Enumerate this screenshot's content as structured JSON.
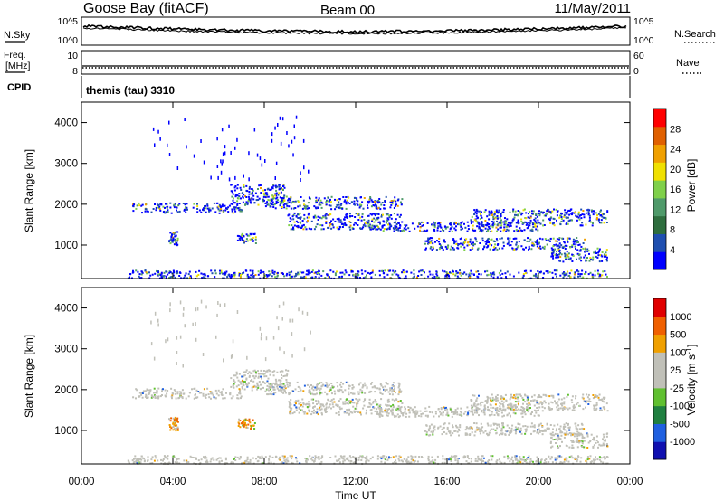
{
  "header": {
    "station": "Goose Bay (fitACF)",
    "beam": "Beam 00",
    "date": "11/May/2011"
  },
  "strip_panels": {
    "nsky_label": "N.Sky",
    "nsky_ticks": [
      "10^5",
      "10^0"
    ],
    "nsearch_label": "N.Search",
    "freq_label_line1": "Freq.",
    "freq_label_line2": "[MHz]",
    "freq_ticks": [
      "10",
      "8"
    ],
    "nave_label": "Nave",
    "nave_ticks": [
      "60",
      "0"
    ],
    "cpid_label": "CPID",
    "cpid_value": "themis (tau) 3310"
  },
  "chart_data": [
    {
      "type": "heatmap",
      "panel": "power",
      "ylabel": "Slant Range [km]",
      "xlabel": "",
      "x_ticks": [
        "00:00",
        "04:00",
        "08:00",
        "12:00",
        "16:00",
        "20:00",
        "00:00"
      ],
      "x_range_hours": [
        0,
        24
      ],
      "y_ticks": [
        1000,
        2000,
        3000,
        4000
      ],
      "ylim": [
        180,
        4500
      ],
      "colorbar": {
        "label": "Power [dB]",
        "ticks": [
          "28",
          "24",
          "20",
          "16",
          "12",
          "8",
          "4"
        ],
        "colors": [
          "#0000ff",
          "#1f4fb0",
          "#2e6e3e",
          "#4f9a6a",
          "#7fd04a",
          "#f0e000",
          "#f0a000",
          "#e06000",
          "#ff0000"
        ]
      },
      "features": [
        {
          "time_h": [
            2.2,
            7.0
          ],
          "range_km": [
            1800,
            2050
          ],
          "level": "mixed"
        },
        {
          "time_h": [
            6.5,
            9.0
          ],
          "range_km": [
            2000,
            2500
          ],
          "level": "mixed"
        },
        {
          "time_h": [
            8.0,
            14.0
          ],
          "range_km": [
            1900,
            2200
          ],
          "level": "mixed"
        },
        {
          "time_h": [
            9.0,
            14.0
          ],
          "range_km": [
            1400,
            1800
          ],
          "level": "mixed"
        },
        {
          "time_h": [
            13.0,
            20.0
          ],
          "range_km": [
            1350,
            1600
          ],
          "level": "mixed"
        },
        {
          "time_h": [
            17.0,
            23.0
          ],
          "range_km": [
            1500,
            1900
          ],
          "level": "mixed"
        },
        {
          "time_h": [
            3.8,
            4.2
          ],
          "range_km": [
            1000,
            1350
          ],
          "level": "mixed"
        },
        {
          "time_h": [
            6.8,
            7.6
          ],
          "range_km": [
            1050,
            1300
          ],
          "level": "mixed"
        },
        {
          "time_h": [
            15.0,
            22.0
          ],
          "range_km": [
            900,
            1200
          ],
          "level": "mixed"
        },
        {
          "time_h": [
            20.5,
            23.0
          ],
          "range_km": [
            600,
            950
          ],
          "level": "mixed"
        },
        {
          "time_h": [
            2.0,
            23.0
          ],
          "range_km": [
            200,
            400
          ],
          "level": "mixed"
        }
      ]
    },
    {
      "type": "heatmap",
      "panel": "velocity",
      "ylabel": "Slant Range [km]",
      "xlabel": "Time UT",
      "x_ticks": [
        "00:00",
        "04:00",
        "08:00",
        "12:00",
        "16:00",
        "20:00",
        "00:00"
      ],
      "x_range_hours": [
        0,
        24
      ],
      "y_ticks": [
        1000,
        2000,
        3000,
        4000
      ],
      "ylim": [
        180,
        4500
      ],
      "colorbar": {
        "label": "Velocity [m s-1]",
        "ticks": [
          "1000",
          "500",
          "100",
          "25",
          "-25",
          "-100",
          "-500",
          "-1000"
        ],
        "colors": [
          "#1010b0",
          "#2060e0",
          "#208040",
          "#60c030",
          "#c0c0b8",
          "#c0c0b8",
          "#f0a000",
          "#f06000",
          "#e00000"
        ]
      },
      "features": [
        {
          "time_h": [
            2.2,
            7.0
          ],
          "range_km": [
            1800,
            2050
          ],
          "level": "ground"
        },
        {
          "time_h": [
            6.5,
            9.0
          ],
          "range_km": [
            2000,
            2500
          ],
          "level": "ground"
        },
        {
          "time_h": [
            8.0,
            14.0
          ],
          "range_km": [
            1900,
            2200
          ],
          "level": "ground"
        },
        {
          "time_h": [
            9.0,
            14.0
          ],
          "range_km": [
            1400,
            1800
          ],
          "level": "ground"
        },
        {
          "time_h": [
            13.0,
            20.0
          ],
          "range_km": [
            1350,
            1600
          ],
          "level": "ground"
        },
        {
          "time_h": [
            17.0,
            23.0
          ],
          "range_km": [
            1500,
            1900
          ],
          "level": "ground"
        },
        {
          "time_h": [
            3.8,
            4.2
          ],
          "range_km": [
            1000,
            1350
          ],
          "level": "ionospheric"
        },
        {
          "time_h": [
            6.8,
            7.6
          ],
          "range_km": [
            1050,
            1300
          ],
          "level": "ionospheric"
        },
        {
          "time_h": [
            15.0,
            22.0
          ],
          "range_km": [
            900,
            1200
          ],
          "level": "ground"
        },
        {
          "time_h": [
            20.5,
            23.0
          ],
          "range_km": [
            600,
            950
          ],
          "level": "ground"
        },
        {
          "time_h": [
            2.0,
            23.0
          ],
          "range_km": [
            200,
            400
          ],
          "level": "ground"
        }
      ]
    }
  ],
  "axis_title_x": "Time UT",
  "velocity_unit_label": "Velocity [m s",
  "velocity_unit_sup": "-1",
  "velocity_unit_close": "]"
}
